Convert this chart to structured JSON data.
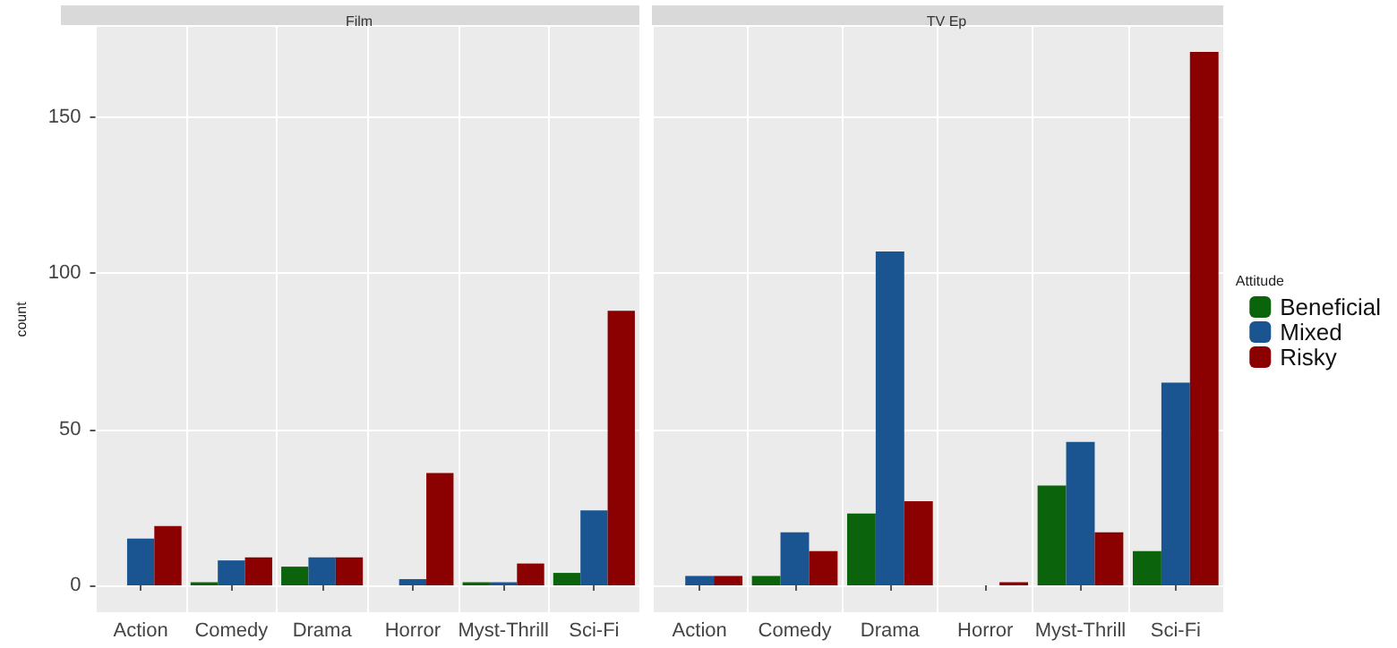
{
  "chart_data": [
    {
      "type": "bar",
      "title": "Film",
      "ylabel": "count",
      "categories": [
        "Action",
        "Comedy",
        "Drama",
        "Horror",
        "Myst-Thrill",
        "Sci-Fi"
      ],
      "series": [
        {
          "color": "#0b640b",
          "values": [
            null,
            1,
            6,
            null,
            1,
            4
          ]
        },
        {
          "color": "#1a5591",
          "values": [
            15,
            8,
            9,
            2,
            1,
            24
          ]
        },
        {
          "color": "#8b0000",
          "values": [
            19,
            9,
            9,
            36,
            7,
            88
          ]
        }
      ],
      "ylim": [
        -8.6,
        179
      ],
      "yticks": [
        0,
        50,
        100,
        150
      ],
      "grid": true,
      "legend": false
    },
    {
      "type": "bar",
      "title": "TV Ep",
      "legend_title": "Attitude",
      "categories": [
        "Action",
        "Comedy",
        "Drama",
        "Horror",
        "Myst-Thrill",
        "Sci-Fi"
      ],
      "series": [
        {
          "name": "Beneficial",
          "color": "#0b640b",
          "values": [
            null,
            3,
            23,
            null,
            32,
            11
          ]
        },
        {
          "name": "Mixed",
          "color": "#1a5591",
          "values": [
            3,
            17,
            107,
            null,
            46,
            65
          ]
        },
        {
          "name": "Risky",
          "color": "#8b0000",
          "values": [
            3,
            11,
            27,
            1,
            17,
            171
          ]
        }
      ],
      "ylim": [
        -8.6,
        179
      ],
      "yticks": [
        0,
        50,
        100,
        150
      ],
      "grid": true,
      "legend": "right",
      "tick_labels": "x"
    }
  ]
}
